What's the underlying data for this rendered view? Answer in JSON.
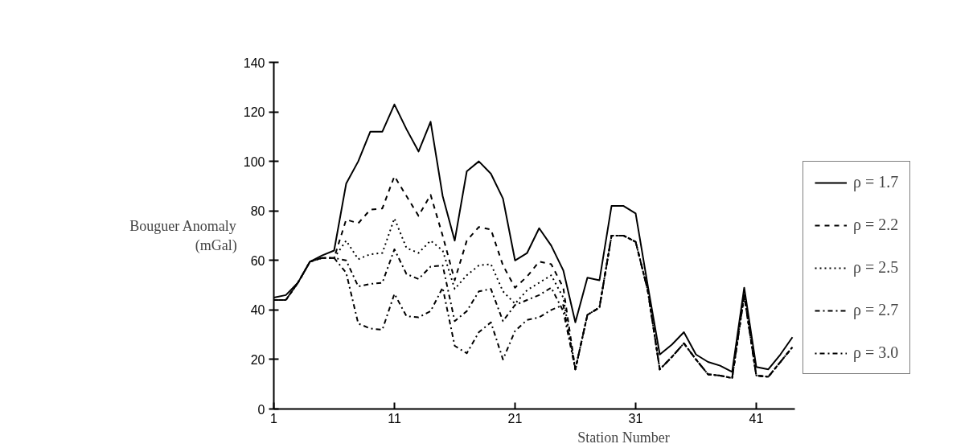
{
  "chart_data": {
    "type": "line",
    "xlabel": "Station Number",
    "ylabel": "Bouguer Anomaly\n(mGal)",
    "x": [
      1,
      2,
      3,
      4,
      5,
      6,
      7,
      8,
      9,
      10,
      11,
      12,
      13,
      14,
      15,
      16,
      17,
      18,
      19,
      20,
      21,
      22,
      23,
      24,
      25,
      26,
      27,
      28,
      29,
      30,
      31,
      32,
      33,
      34,
      35,
      36,
      37,
      38,
      39,
      40,
      41,
      42,
      43,
      44
    ],
    "series": [
      {
        "name": "ρ = 1.7",
        "color": "#000000",
        "line_style": "solid",
        "values": [
          45,
          46,
          51,
          59.5,
          62,
          64,
          91,
          100,
          112,
          112,
          123,
          113,
          104,
          116,
          86,
          68,
          96,
          100,
          95,
          85,
          60,
          63,
          73,
          66,
          56,
          35,
          53,
          52,
          82,
          82,
          79,
          50,
          22,
          26,
          31,
          22,
          19,
          17.5,
          15,
          49,
          17,
          16,
          22,
          29
        ]
      },
      {
        "name": "ρ = 2.2",
        "color": "#000000",
        "line_style": "dashed",
        "values": [
          44,
          44,
          51,
          59.5,
          61,
          61,
          76.5,
          75,
          80.5,
          81,
          94,
          86,
          78,
          86.5,
          70,
          52,
          68,
          73.5,
          72.5,
          58,
          49,
          53.5,
          59.5,
          58.5,
          49,
          16,
          38,
          41,
          70,
          70,
          67.5,
          48,
          16,
          21,
          26.5,
          20,
          14,
          13.5,
          12.5,
          46,
          13.5,
          13,
          19,
          25
        ]
      },
      {
        "name": "ρ = 2.5",
        "color": "#000000",
        "line_style": "dotted",
        "values": [
          44,
          44,
          51,
          59.5,
          61,
          61,
          68,
          60.5,
          62.5,
          63,
          77,
          65,
          63,
          68,
          64,
          48.5,
          54,
          58,
          58.5,
          47.5,
          42.5,
          48,
          51,
          54,
          45,
          16,
          38,
          41,
          70,
          70,
          67.5,
          48,
          16,
          21,
          26.5,
          20,
          14,
          13.5,
          12.5,
          46,
          13.5,
          13,
          19,
          25
        ]
      },
      {
        "name": "ρ = 2.7",
        "color": "#000000",
        "line_style": "dashdot",
        "values": [
          44,
          44,
          51,
          59.5,
          61,
          61,
          60,
          49.5,
          50.5,
          51,
          64.5,
          54.5,
          52.5,
          57.5,
          58,
          35.5,
          39.5,
          47.5,
          48.5,
          35.5,
          42,
          44,
          46,
          49,
          39.5,
          16,
          38,
          41,
          70,
          70,
          67.5,
          48,
          16,
          21,
          26.5,
          20,
          14,
          13.5,
          12.5,
          46,
          13.5,
          13,
          19,
          25
        ]
      },
      {
        "name": "ρ = 3.0",
        "color": "#000000",
        "line_style": "dotdash",
        "values": [
          44,
          44,
          51,
          59.5,
          61,
          61,
          55,
          34.5,
          32.5,
          32,
          46.5,
          37.5,
          37,
          39.5,
          49,
          25.5,
          22.5,
          31,
          35,
          20,
          31.5,
          36,
          37,
          40,
          42,
          16,
          38,
          41,
          70,
          70,
          67.5,
          48,
          16,
          21,
          26.5,
          20,
          14,
          13.5,
          12.5,
          46,
          13.5,
          13,
          19,
          25
        ]
      }
    ],
    "xlim": [
      1,
      44.2
    ],
    "xticks": [
      1,
      11,
      21,
      31,
      41
    ],
    "ylim": [
      0,
      140
    ],
    "yticks": [
      0,
      20,
      40,
      60,
      80,
      100,
      120,
      140
    ],
    "grid": false,
    "legend": "right",
    "marker": "none"
  }
}
